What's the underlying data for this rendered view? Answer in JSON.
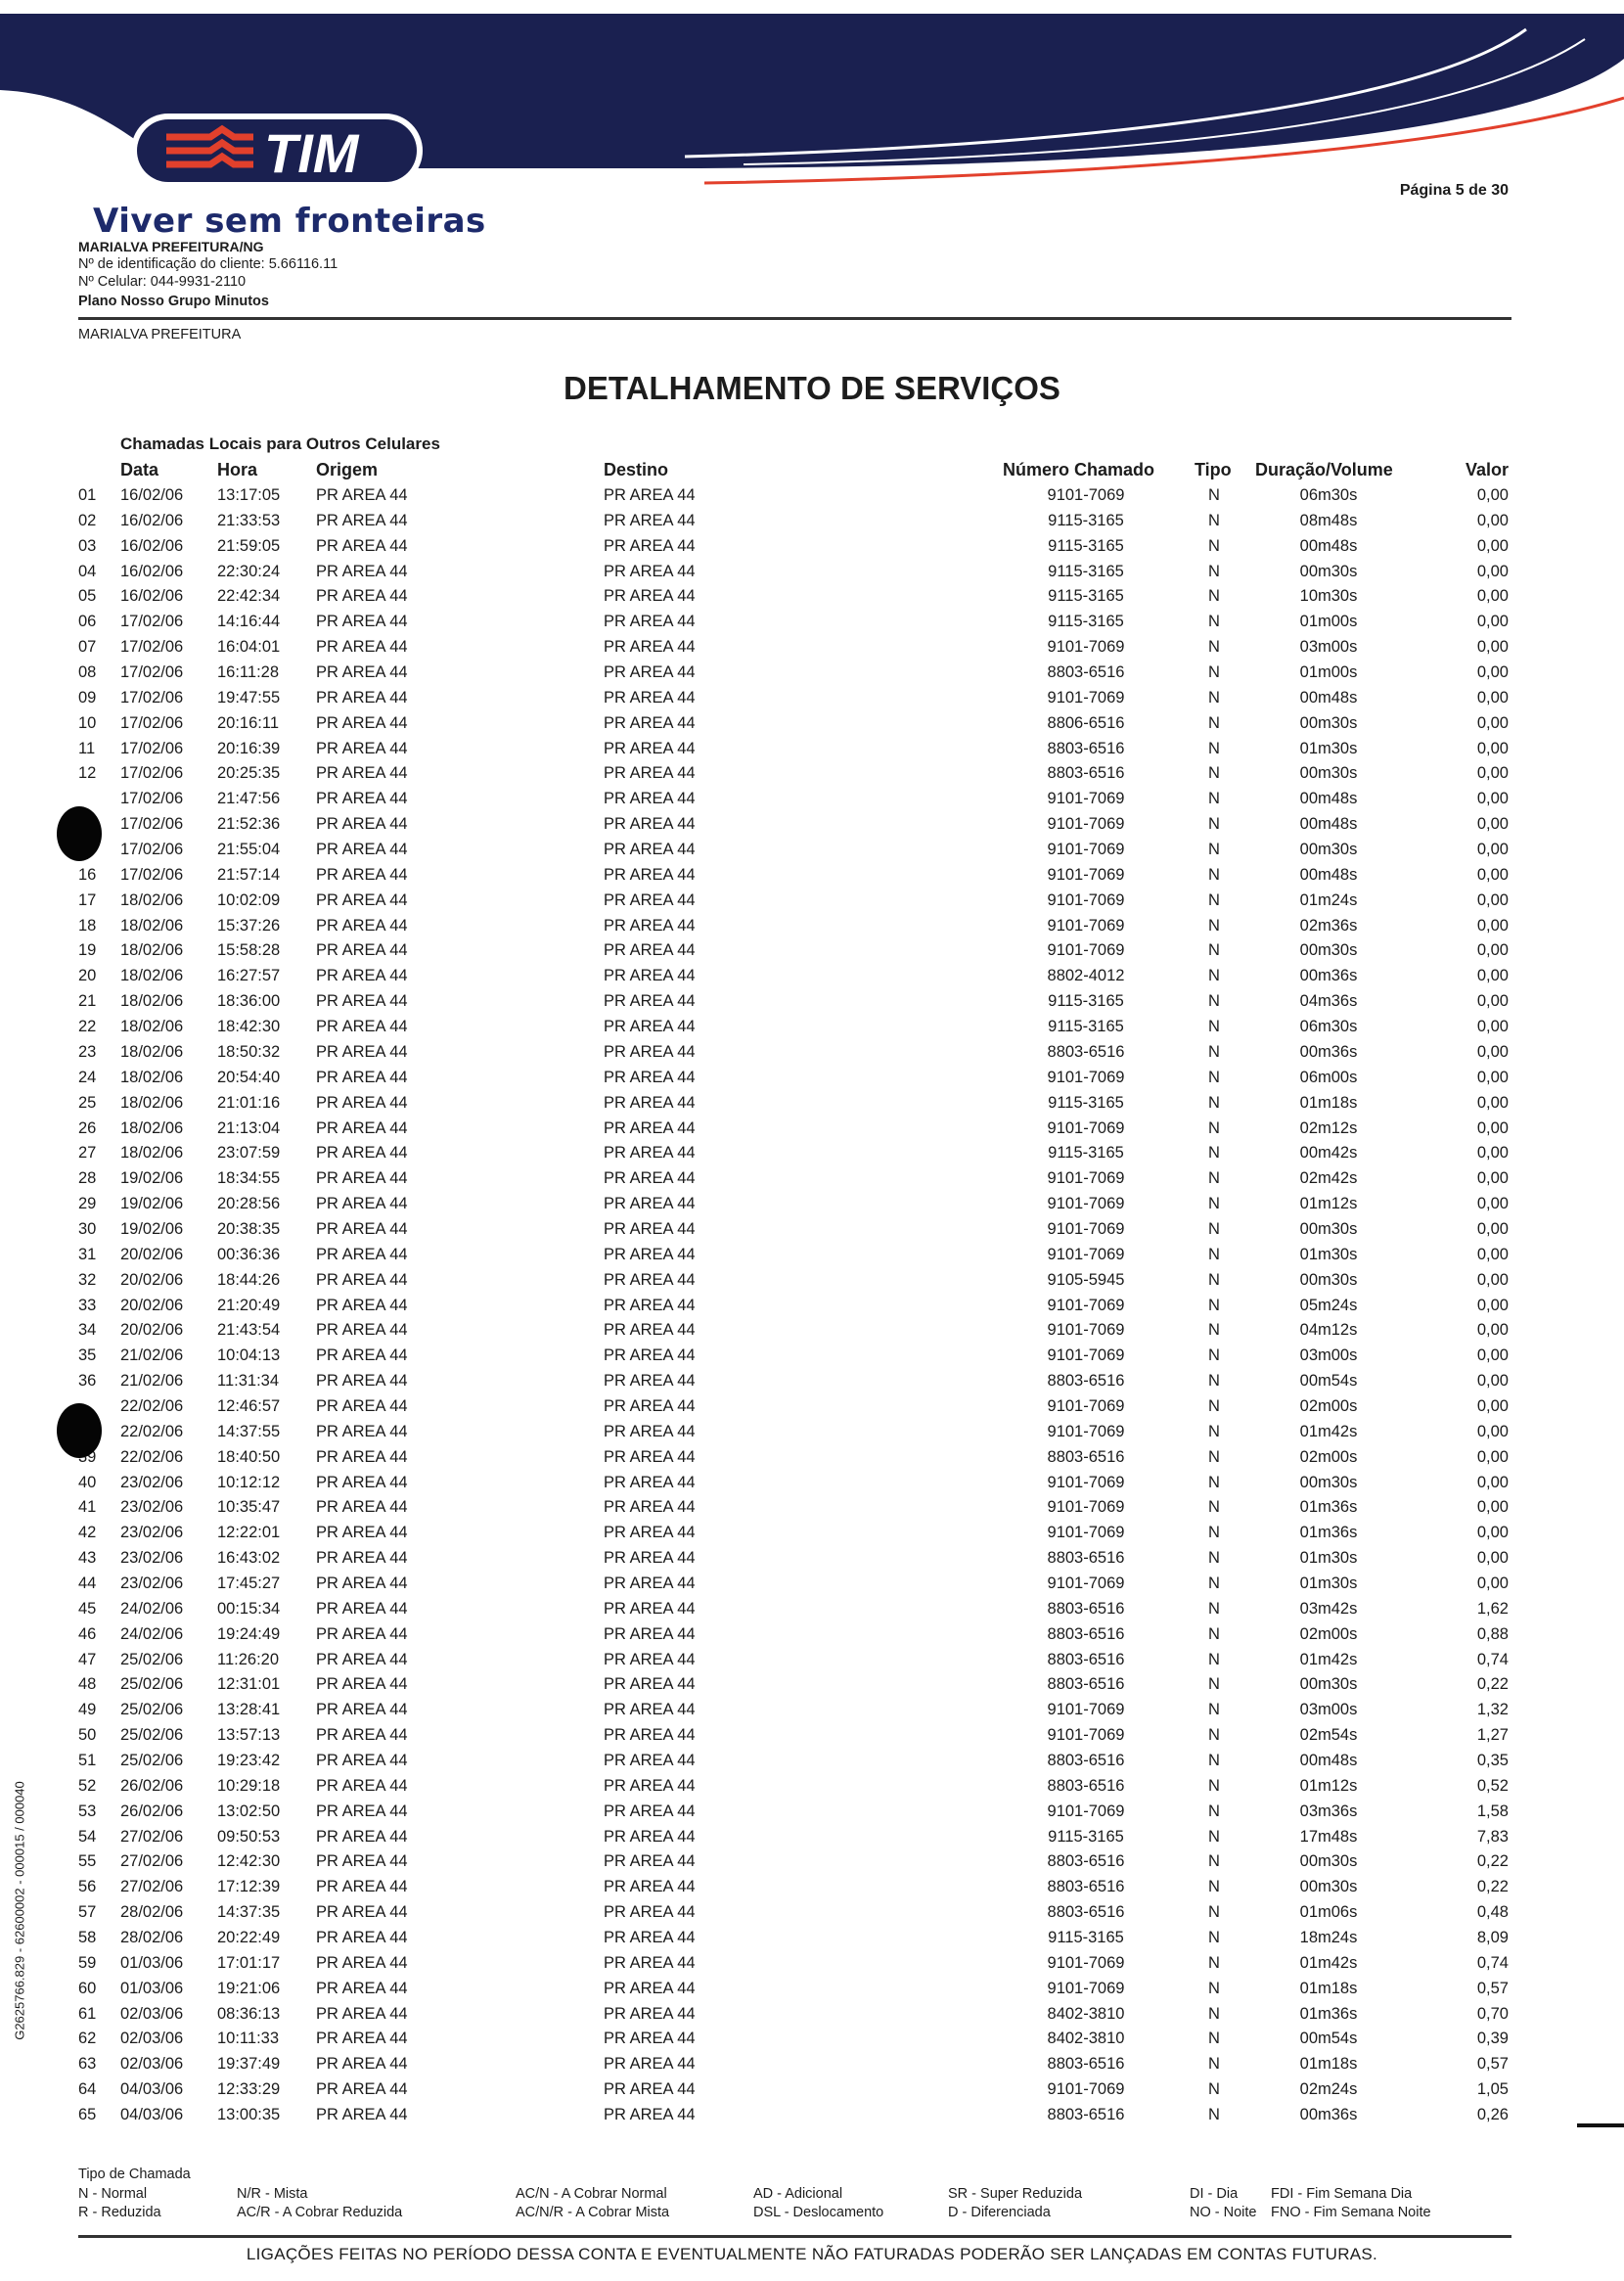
{
  "header": {
    "brand_logo": "TIM",
    "slogan": "Viver sem fronteiras",
    "page_label": "Página 5 de 30",
    "client_name": "MARIALVA PREFEITURA/NG",
    "client_id": "Nº de identificação do cliente: 5.66116.11",
    "cell_number": "Nº Celular: 044-9931-2110",
    "plan": "Plano Nosso Grupo Minutos",
    "account_name": "MARIALVA PREFEITURA",
    "colors": {
      "navy": "#1d2a6b",
      "red": "#e2402c"
    }
  },
  "title": "DETALHAMENTO DE SERVIÇOS",
  "section_title": "Chamadas Locais para Outros Celulares",
  "columns": [
    "Data",
    "Hora",
    "Origem",
    "Destino",
    "Número Chamado",
    "Tipo",
    "Duração/Volume",
    "Valor"
  ],
  "rows": [
    [
      "01",
      "16/02/06",
      "13:17:05",
      "PR AREA 44",
      "PR AREA 44",
      "9101-7069",
      "N",
      "06m30s",
      "0,00"
    ],
    [
      "02",
      "16/02/06",
      "21:33:53",
      "PR AREA 44",
      "PR AREA 44",
      "9115-3165",
      "N",
      "08m48s",
      "0,00"
    ],
    [
      "03",
      "16/02/06",
      "21:59:05",
      "PR AREA 44",
      "PR AREA 44",
      "9115-3165",
      "N",
      "00m48s",
      "0,00"
    ],
    [
      "04",
      "16/02/06",
      "22:30:24",
      "PR AREA 44",
      "PR AREA 44",
      "9115-3165",
      "N",
      "00m30s",
      "0,00"
    ],
    [
      "05",
      "16/02/06",
      "22:42:34",
      "PR AREA 44",
      "PR AREA 44",
      "9115-3165",
      "N",
      "10m30s",
      "0,00"
    ],
    [
      "06",
      "17/02/06",
      "14:16:44",
      "PR AREA 44",
      "PR AREA 44",
      "9115-3165",
      "N",
      "01m00s",
      "0,00"
    ],
    [
      "07",
      "17/02/06",
      "16:04:01",
      "PR AREA 44",
      "PR AREA 44",
      "9101-7069",
      "N",
      "03m00s",
      "0,00"
    ],
    [
      "08",
      "17/02/06",
      "16:11:28",
      "PR AREA 44",
      "PR AREA 44",
      "8803-6516",
      "N",
      "01m00s",
      "0,00"
    ],
    [
      "09",
      "17/02/06",
      "19:47:55",
      "PR AREA 44",
      "PR AREA 44",
      "9101-7069",
      "N",
      "00m48s",
      "0,00"
    ],
    [
      "10",
      "17/02/06",
      "20:16:11",
      "PR AREA 44",
      "PR AREA 44",
      "8806-6516",
      "N",
      "00m30s",
      "0,00"
    ],
    [
      "11",
      "17/02/06",
      "20:16:39",
      "PR AREA 44",
      "PR AREA 44",
      "8803-6516",
      "N",
      "01m30s",
      "0,00"
    ],
    [
      "12",
      "17/02/06",
      "20:25:35",
      "PR AREA 44",
      "PR AREA 44",
      "8803-6516",
      "N",
      "00m30s",
      "0,00"
    ],
    [
      "",
      "17/02/06",
      "21:47:56",
      "PR AREA 44",
      "PR AREA 44",
      "9101-7069",
      "N",
      "00m48s",
      "0,00"
    ],
    [
      "",
      "17/02/06",
      "21:52:36",
      "PR AREA 44",
      "PR AREA 44",
      "9101-7069",
      "N",
      "00m48s",
      "0,00"
    ],
    [
      "15",
      "17/02/06",
      "21:55:04",
      "PR AREA 44",
      "PR AREA 44",
      "9101-7069",
      "N",
      "00m30s",
      "0,00"
    ],
    [
      "16",
      "17/02/06",
      "21:57:14",
      "PR AREA 44",
      "PR AREA 44",
      "9101-7069",
      "N",
      "00m48s",
      "0,00"
    ],
    [
      "17",
      "18/02/06",
      "10:02:09",
      "PR AREA 44",
      "PR AREA 44",
      "9101-7069",
      "N",
      "01m24s",
      "0,00"
    ],
    [
      "18",
      "18/02/06",
      "15:37:26",
      "PR AREA 44",
      "PR AREA 44",
      "9101-7069",
      "N",
      "02m36s",
      "0,00"
    ],
    [
      "19",
      "18/02/06",
      "15:58:28",
      "PR AREA 44",
      "PR AREA 44",
      "9101-7069",
      "N",
      "00m30s",
      "0,00"
    ],
    [
      "20",
      "18/02/06",
      "16:27:57",
      "PR AREA 44",
      "PR AREA 44",
      "8802-4012",
      "N",
      "00m36s",
      "0,00"
    ],
    [
      "21",
      "18/02/06",
      "18:36:00",
      "PR AREA 44",
      "PR AREA 44",
      "9115-3165",
      "N",
      "04m36s",
      "0,00"
    ],
    [
      "22",
      "18/02/06",
      "18:42:30",
      "PR AREA 44",
      "PR AREA 44",
      "9115-3165",
      "N",
      "06m30s",
      "0,00"
    ],
    [
      "23",
      "18/02/06",
      "18:50:32",
      "PR AREA 44",
      "PR AREA 44",
      "8803-6516",
      "N",
      "00m36s",
      "0,00"
    ],
    [
      "24",
      "18/02/06",
      "20:54:40",
      "PR AREA 44",
      "PR AREA 44",
      "9101-7069",
      "N",
      "06m00s",
      "0,00"
    ],
    [
      "25",
      "18/02/06",
      "21:01:16",
      "PR AREA 44",
      "PR AREA 44",
      "9115-3165",
      "N",
      "01m18s",
      "0,00"
    ],
    [
      "26",
      "18/02/06",
      "21:13:04",
      "PR AREA 44",
      "PR AREA 44",
      "9101-7069",
      "N",
      "02m12s",
      "0,00"
    ],
    [
      "27",
      "18/02/06",
      "23:07:59",
      "PR AREA 44",
      "PR AREA 44",
      "9115-3165",
      "N",
      "00m42s",
      "0,00"
    ],
    [
      "28",
      "19/02/06",
      "18:34:55",
      "PR AREA 44",
      "PR AREA 44",
      "9101-7069",
      "N",
      "02m42s",
      "0,00"
    ],
    [
      "29",
      "19/02/06",
      "20:28:56",
      "PR AREA 44",
      "PR AREA 44",
      "9101-7069",
      "N",
      "01m12s",
      "0,00"
    ],
    [
      "30",
      "19/02/06",
      "20:38:35",
      "PR AREA 44",
      "PR AREA 44",
      "9101-7069",
      "N",
      "00m30s",
      "0,00"
    ],
    [
      "31",
      "20/02/06",
      "00:36:36",
      "PR AREA 44",
      "PR AREA 44",
      "9101-7069",
      "N",
      "01m30s",
      "0,00"
    ],
    [
      "32",
      "20/02/06",
      "18:44:26",
      "PR AREA 44",
      "PR AREA 44",
      "9105-5945",
      "N",
      "00m30s",
      "0,00"
    ],
    [
      "33",
      "20/02/06",
      "21:20:49",
      "PR AREA 44",
      "PR AREA 44",
      "9101-7069",
      "N",
      "05m24s",
      "0,00"
    ],
    [
      "34",
      "20/02/06",
      "21:43:54",
      "PR AREA 44",
      "PR AREA 44",
      "9101-7069",
      "N",
      "04m12s",
      "0,00"
    ],
    [
      "35",
      "21/02/06",
      "10:04:13",
      "PR AREA 44",
      "PR AREA 44",
      "9101-7069",
      "N",
      "03m00s",
      "0,00"
    ],
    [
      "36",
      "21/02/06",
      "11:31:34",
      "PR AREA 44",
      "PR AREA 44",
      "8803-6516",
      "N",
      "00m54s",
      "0,00"
    ],
    [
      "",
      "22/02/06",
      "12:46:57",
      "PR AREA 44",
      "PR AREA 44",
      "9101-7069",
      "N",
      "02m00s",
      "0,00"
    ],
    [
      "",
      "22/02/06",
      "14:37:55",
      "PR AREA 44",
      "PR AREA 44",
      "9101-7069",
      "N",
      "01m42s",
      "0,00"
    ],
    [
      "39",
      "22/02/06",
      "18:40:50",
      "PR AREA 44",
      "PR AREA 44",
      "8803-6516",
      "N",
      "02m00s",
      "0,00"
    ],
    [
      "40",
      "23/02/06",
      "10:12:12",
      "PR AREA 44",
      "PR AREA 44",
      "9101-7069",
      "N",
      "00m30s",
      "0,00"
    ],
    [
      "41",
      "23/02/06",
      "10:35:47",
      "PR AREA 44",
      "PR AREA 44",
      "9101-7069",
      "N",
      "01m36s",
      "0,00"
    ],
    [
      "42",
      "23/02/06",
      "12:22:01",
      "PR AREA 44",
      "PR AREA 44",
      "9101-7069",
      "N",
      "01m36s",
      "0,00"
    ],
    [
      "43",
      "23/02/06",
      "16:43:02",
      "PR AREA 44",
      "PR AREA 44",
      "8803-6516",
      "N",
      "01m30s",
      "0,00"
    ],
    [
      "44",
      "23/02/06",
      "17:45:27",
      "PR AREA 44",
      "PR AREA 44",
      "9101-7069",
      "N",
      "01m30s",
      "0,00"
    ],
    [
      "45",
      "24/02/06",
      "00:15:34",
      "PR AREA 44",
      "PR AREA 44",
      "8803-6516",
      "N",
      "03m42s",
      "1,62"
    ],
    [
      "46",
      "24/02/06",
      "19:24:49",
      "PR AREA 44",
      "PR AREA 44",
      "8803-6516",
      "N",
      "02m00s",
      "0,88"
    ],
    [
      "47",
      "25/02/06",
      "11:26:20",
      "PR AREA 44",
      "PR AREA 44",
      "8803-6516",
      "N",
      "01m42s",
      "0,74"
    ],
    [
      "48",
      "25/02/06",
      "12:31:01",
      "PR AREA 44",
      "PR AREA 44",
      "8803-6516",
      "N",
      "00m30s",
      "0,22"
    ],
    [
      "49",
      "25/02/06",
      "13:28:41",
      "PR AREA 44",
      "PR AREA 44",
      "9101-7069",
      "N",
      "03m00s",
      "1,32"
    ],
    [
      "50",
      "25/02/06",
      "13:57:13",
      "PR AREA 44",
      "PR AREA 44",
      "9101-7069",
      "N",
      "02m54s",
      "1,27"
    ],
    [
      "51",
      "25/02/06",
      "19:23:42",
      "PR AREA 44",
      "PR AREA 44",
      "8803-6516",
      "N",
      "00m48s",
      "0,35"
    ],
    [
      "52",
      "26/02/06",
      "10:29:18",
      "PR AREA 44",
      "PR AREA 44",
      "8803-6516",
      "N",
      "01m12s",
      "0,52"
    ],
    [
      "53",
      "26/02/06",
      "13:02:50",
      "PR AREA 44",
      "PR AREA 44",
      "9101-7069",
      "N",
      "03m36s",
      "1,58"
    ],
    [
      "54",
      "27/02/06",
      "09:50:53",
      "PR AREA 44",
      "PR AREA 44",
      "9115-3165",
      "N",
      "17m48s",
      "7,83"
    ],
    [
      "55",
      "27/02/06",
      "12:42:30",
      "PR AREA 44",
      "PR AREA 44",
      "8803-6516",
      "N",
      "00m30s",
      "0,22"
    ],
    [
      "56",
      "27/02/06",
      "17:12:39",
      "PR AREA 44",
      "PR AREA 44",
      "8803-6516",
      "N",
      "00m30s",
      "0,22"
    ],
    [
      "57",
      "28/02/06",
      "14:37:35",
      "PR AREA 44",
      "PR AREA 44",
      "8803-6516",
      "N",
      "01m06s",
      "0,48"
    ],
    [
      "58",
      "28/02/06",
      "20:22:49",
      "PR AREA 44",
      "PR AREA 44",
      "9115-3165",
      "N",
      "18m24s",
      "8,09"
    ],
    [
      "59",
      "01/03/06",
      "17:01:17",
      "PR AREA 44",
      "PR AREA 44",
      "9101-7069",
      "N",
      "01m42s",
      "0,74"
    ],
    [
      "60",
      "01/03/06",
      "19:21:06",
      "PR AREA 44",
      "PR AREA 44",
      "9101-7069",
      "N",
      "01m18s",
      "0,57"
    ],
    [
      "61",
      "02/03/06",
      "08:36:13",
      "PR AREA 44",
      "PR AREA 44",
      "8402-3810",
      "N",
      "01m36s",
      "0,70"
    ],
    [
      "62",
      "02/03/06",
      "10:11:33",
      "PR AREA 44",
      "PR AREA 44",
      "8402-3810",
      "N",
      "00m54s",
      "0,39"
    ],
    [
      "63",
      "02/03/06",
      "19:37:49",
      "PR AREA 44",
      "PR AREA 44",
      "8803-6516",
      "N",
      "01m18s",
      "0,57"
    ],
    [
      "64",
      "04/03/06",
      "12:33:29",
      "PR AREA 44",
      "PR AREA 44",
      "9101-7069",
      "N",
      "02m24s",
      "1,05"
    ],
    [
      "65",
      "04/03/06",
      "13:00:35",
      "PR AREA 44",
      "PR AREA 44",
      "8803-6516",
      "N",
      "00m36s",
      "0,26"
    ]
  ],
  "legend": {
    "title": "Tipo de Chamada",
    "items": [
      [
        "N - Normal",
        "R - Reduzida"
      ],
      [
        "N/R - Mista",
        "AC/R - A Cobrar Reduzida"
      ],
      [
        "AC/N - A Cobrar Normal",
        "AC/N/R - A Cobrar Mista"
      ],
      [
        "AD - Adicional",
        "DSL - Deslocamento"
      ],
      [
        "SR - Super Reduzida",
        "D - Diferenciada"
      ],
      [
        "DI - Dia",
        "NO - Noite"
      ],
      [
        "FDI - Fim Semana Dia",
        "FNO - Fim Semana Noite"
      ]
    ]
  },
  "footer_note": "LIGAÇÕES FEITAS NO PERÍODO DESSA CONTA E EVENTUALMENTE NÃO FATURADAS PODERÃO SER LANÇADAS EM CONTAS FUTURAS.",
  "side_code": "G2625766.829 - 62600002 - 000015 / 000040"
}
